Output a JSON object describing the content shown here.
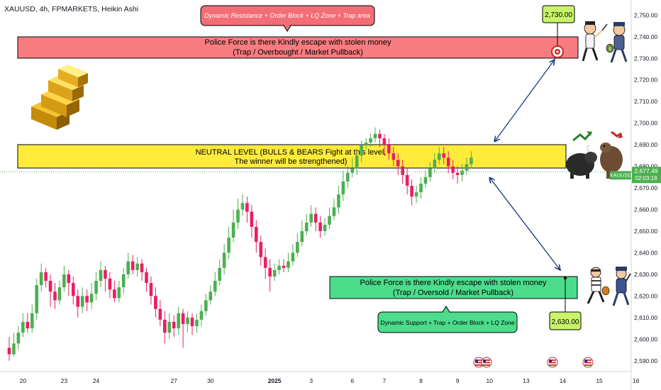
{
  "header": {
    "symbol_line": "XAUUSD, 4h, FPMARKETS, Heikin Ashi"
  },
  "chart_data": {
    "type": "candlestick",
    "style": "Heikin Ashi",
    "symbol": "XAUUSD",
    "timeframe": "4h",
    "ylim": [
      2585,
      2757
    ],
    "y_ticks": [
      "2,590.00",
      "2,600.00",
      "2,610.00",
      "2,620.00",
      "2,630.00",
      "2,640.00",
      "2,650.00",
      "2,660.00",
      "2,670.00",
      "2,680.00",
      "2,690.00",
      "2,700.00",
      "2,710.00",
      "2,720.00",
      "2,730.00",
      "2,740.00",
      "2,750.00"
    ],
    "y_tick_values": [
      2590,
      2600,
      2610,
      2620,
      2630,
      2640,
      2650,
      2660,
      2670,
      2680,
      2690,
      2700,
      2710,
      2720,
      2730,
      2740,
      2750
    ],
    "x_ticks": [
      "20",
      "23",
      "24",
      "27",
      "30",
      "2025",
      "3",
      "6",
      "7",
      "8",
      "9",
      "10",
      "13",
      "14",
      "15",
      "16"
    ],
    "x_tick_bold": [
      "2025"
    ],
    "x_tick_index": [
      3,
      12,
      19,
      36,
      44,
      58,
      66,
      75,
      82,
      90,
      98,
      105,
      113,
      121,
      129,
      137
    ],
    "candles": [
      [
        2596,
        2593,
        2601,
        2590
      ],
      [
        2593,
        2598,
        2603,
        2592
      ],
      [
        2598,
        2603,
        2606,
        2595
      ],
      [
        2603,
        2608,
        2612,
        2601
      ],
      [
        2608,
        2605,
        2612,
        2603
      ],
      [
        2605,
        2612,
        2616,
        2603
      ],
      [
        2612,
        2625,
        2628,
        2609
      ],
      [
        2625,
        2631,
        2635,
        2622
      ],
      [
        2631,
        2627,
        2633,
        2624
      ],
      [
        2627,
        2622,
        2630,
        2615
      ],
      [
        2622,
        2618,
        2626,
        2614
      ],
      [
        2618,
        2624,
        2627,
        2616
      ],
      [
        2624,
        2630,
        2634,
        2622
      ],
      [
        2630,
        2626,
        2632,
        2620
      ],
      [
        2626,
        2620,
        2629,
        2616
      ],
      [
        2620,
        2615,
        2623,
        2610
      ],
      [
        2615,
        2620,
        2624,
        2612
      ],
      [
        2620,
        2617,
        2623,
        2613
      ],
      [
        2617,
        2621,
        2626,
        2614
      ],
      [
        2621,
        2627,
        2631,
        2618
      ],
      [
        2627,
        2632,
        2636,
        2624
      ],
      [
        2632,
        2628,
        2634,
        2622
      ],
      [
        2628,
        2623,
        2631,
        2619
      ],
      [
        2623,
        2619,
        2627,
        2617
      ],
      [
        2619,
        2624,
        2627,
        2617
      ],
      [
        2624,
        2630,
        2633,
        2621
      ],
      [
        2630,
        2636,
        2640,
        2628
      ],
      [
        2636,
        2632,
        2639,
        2630
      ],
      [
        2632,
        2635,
        2638,
        2629
      ],
      [
        2635,
        2631,
        2637,
        2627
      ],
      [
        2631,
        2626,
        2633,
        2622
      ],
      [
        2626,
        2620,
        2629,
        2616
      ],
      [
        2620,
        2614,
        2624,
        2610
      ],
      [
        2614,
        2609,
        2618,
        2606
      ],
      [
        2609,
        2603,
        2613,
        2598
      ],
      [
        2603,
        2608,
        2612,
        2600
      ],
      [
        2608,
        2605,
        2611,
        2601
      ],
      [
        2605,
        2612,
        2615,
        2602
      ],
      [
        2612,
        2607,
        2614,
        2596
      ],
      [
        2607,
        2610,
        2613,
        2603
      ],
      [
        2610,
        2606,
        2612,
        2602
      ],
      [
        2606,
        2609,
        2612,
        2603
      ],
      [
        2609,
        2613,
        2616,
        2606
      ],
      [
        2613,
        2618,
        2621,
        2611
      ],
      [
        2618,
        2622,
        2625,
        2616
      ],
      [
        2622,
        2627,
        2631,
        2620
      ],
      [
        2627,
        2633,
        2637,
        2625
      ],
      [
        2633,
        2640,
        2644,
        2630
      ],
      [
        2640,
        2647,
        2652,
        2637
      ],
      [
        2647,
        2654,
        2660,
        2645
      ],
      [
        2654,
        2660,
        2665,
        2651
      ],
      [
        2660,
        2663,
        2667,
        2657
      ],
      [
        2663,
        2659,
        2666,
        2654
      ],
      [
        2659,
        2652,
        2662,
        2647
      ],
      [
        2652,
        2645,
        2655,
        2640
      ],
      [
        2645,
        2638,
        2648,
        2634
      ],
      [
        2638,
        2633,
        2642,
        2628
      ],
      [
        2633,
        2629,
        2637,
        2622
      ],
      [
        2629,
        2632,
        2635,
        2627
      ],
      [
        2632,
        2634,
        2637,
        2630
      ],
      [
        2634,
        2633,
        2637,
        2631
      ],
      [
        2633,
        2636,
        2640,
        2631
      ],
      [
        2636,
        2640,
        2644,
        2634
      ],
      [
        2640,
        2645,
        2649,
        2638
      ],
      [
        2645,
        2650,
        2655,
        2643
      ],
      [
        2650,
        2654,
        2658,
        2648
      ],
      [
        2654,
        2658,
        2662,
        2652
      ],
      [
        2658,
        2654,
        2661,
        2650
      ],
      [
        2654,
        2650,
        2657,
        2647
      ],
      [
        2650,
        2653,
        2656,
        2648
      ],
      [
        2653,
        2657,
        2661,
        2651
      ],
      [
        2657,
        2661,
        2665,
        2655
      ],
      [
        2661,
        2667,
        2671,
        2658
      ],
      [
        2667,
        2673,
        2678,
        2664
      ],
      [
        2673,
        2677,
        2680,
        2670
      ],
      [
        2677,
        2679,
        2684,
        2675
      ],
      [
        2679,
        2685,
        2688,
        2676
      ],
      [
        2685,
        2690,
        2692,
        2682
      ],
      [
        2690,
        2691,
        2693,
        2688
      ],
      [
        2691,
        2693,
        2695,
        2689
      ],
      [
        2693,
        2695,
        2698,
        2691
      ],
      [
        2695,
        2693,
        2697,
        2689
      ],
      [
        2693,
        2690,
        2695,
        2685
      ],
      [
        2690,
        2686,
        2693,
        2683
      ],
      [
        2686,
        2683,
        2689,
        2680
      ],
      [
        2683,
        2680,
        2686,
        2676
      ],
      [
        2680,
        2676,
        2683,
        2672
      ],
      [
        2676,
        2671,
        2679,
        2667
      ],
      [
        2671,
        2666,
        2674,
        2662
      ],
      [
        2666,
        2668,
        2671,
        2663
      ],
      [
        2668,
        2672,
        2675,
        2665
      ],
      [
        2672,
        2675,
        2678,
        2670
      ],
      [
        2675,
        2679,
        2682,
        2673
      ],
      [
        2679,
        2683,
        2686,
        2677
      ],
      [
        2683,
        2686,
        2689,
        2681
      ],
      [
        2686,
        2684,
        2689,
        2681
      ],
      [
        2684,
        2680,
        2687,
        2677
      ],
      [
        2680,
        2677,
        2683,
        2674
      ],
      [
        2677,
        2676,
        2680,
        2672
      ],
      [
        2676,
        2678,
        2681,
        2673
      ],
      [
        2678,
        2681,
        2684,
        2676
      ],
      [
        2681,
        2684,
        2687,
        2679
      ]
    ],
    "last_price_label": "XAUUSD",
    "last_price": "2,677.49",
    "countdown": "02:03:18",
    "last_price_value": 2677.49,
    "annotations": {
      "resistance_zone": {
        "title": "Dynamic Resistance + Order Block + LQ Zone + Trap area",
        "line1": "Police Force is there Kindly escape with stolen money",
        "line2": "(Trap / Overbought / Market Pullback)",
        "target": "2,730.00",
        "target_value": 2730,
        "color": "#f77c80"
      },
      "neutral_zone": {
        "line1": "NEUTRAL LEVEL (BULLS & BEARS Fight at this level,",
        "line2": "The winner will be strengthened)",
        "color": "#ffeb3b"
      },
      "support_zone": {
        "line1": "Police Force is there Kindly escape with stolen money",
        "line2": "(Trap / Oversold / Market Pullback)",
        "title": "Dynamic Support + Trap + Order Block + LQ Zone",
        "target": "2,630.00",
        "target_value": 2630,
        "color": "#4cdc8c"
      }
    },
    "colors": {
      "up": "#26a69a",
      "down": "#ef5350",
      "up_ha": "#4caf50",
      "down_ha": "#e91e63",
      "price_line": "#4caf50",
      "axis_text": "#131722"
    },
    "grid": false
  }
}
